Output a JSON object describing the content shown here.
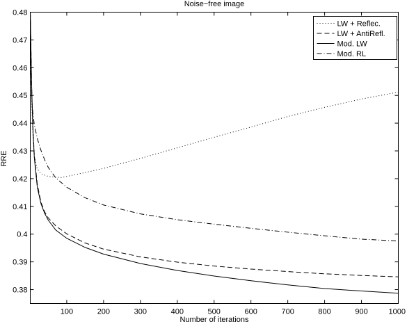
{
  "chart_data": {
    "type": "line",
    "title": "Noise−free image",
    "xlabel": "Number of iterations",
    "ylabel": "RRE",
    "xlim": [
      1,
      1000
    ],
    "ylim": [
      0.375,
      0.48
    ],
    "xticks": [
      100,
      200,
      300,
      400,
      500,
      600,
      700,
      800,
      900,
      1000
    ],
    "xtick_labels": [
      "100",
      "200",
      "300",
      "400",
      "500",
      "600",
      "700",
      "800",
      "900",
      "1000"
    ],
    "yticks": [
      0.38,
      0.39,
      0.4,
      0.41,
      0.42,
      0.43,
      0.44,
      0.45,
      0.46,
      0.47,
      0.48
    ],
    "ytick_labels": [
      "0.38",
      "0.39",
      "0.4",
      "0.41",
      "0.42",
      "0.43",
      "0.44",
      "0.45",
      "0.46",
      "0.47",
      "0.48"
    ],
    "grid": false,
    "legend_position": "top-right",
    "series": [
      {
        "name": "LW + Reflec.",
        "style": "dotted",
        "x": [
          1,
          3,
          5,
          8,
          12,
          20,
          30,
          50,
          70,
          85,
          100,
          150,
          200,
          300,
          400,
          500,
          600,
          700,
          800,
          900,
          1000
        ],
        "y": [
          0.48,
          0.462,
          0.447,
          0.436,
          0.428,
          0.4235,
          0.4218,
          0.4208,
          0.4205,
          0.4204,
          0.4208,
          0.4222,
          0.4237,
          0.4273,
          0.4311,
          0.4349,
          0.4386,
          0.4424,
          0.4457,
          0.4487,
          0.4512
        ]
      },
      {
        "name": "LW + AntiRefl.",
        "style": "dashed",
        "x": [
          1,
          3,
          5,
          8,
          12,
          20,
          30,
          40,
          50,
          70,
          100,
          150,
          200,
          300,
          400,
          500,
          600,
          700,
          800,
          900,
          1000
        ],
        "y": [
          0.48,
          0.466,
          0.452,
          0.439,
          0.4285,
          0.418,
          0.4115,
          0.408,
          0.4058,
          0.403,
          0.4001,
          0.3968,
          0.3946,
          0.3918,
          0.3899,
          0.3885,
          0.3874,
          0.3865,
          0.3857,
          0.3851,
          0.3846
        ]
      },
      {
        "name": "Mod. LW",
        "style": "solid",
        "x": [
          1,
          3,
          5,
          8,
          12,
          20,
          30,
          40,
          50,
          70,
          100,
          150,
          200,
          300,
          400,
          500,
          600,
          700,
          800,
          900,
          1000
        ],
        "y": [
          0.48,
          0.466,
          0.452,
          0.4385,
          0.4275,
          0.417,
          0.411,
          0.4075,
          0.405,
          0.4015,
          0.3985,
          0.3952,
          0.3928,
          0.3894,
          0.3869,
          0.3849,
          0.3832,
          0.3817,
          0.3804,
          0.3795,
          0.3787
        ]
      },
      {
        "name": "Mod. RL",
        "style": "dashdot",
        "x": [
          1,
          3,
          5,
          8,
          12,
          20,
          30,
          40,
          50,
          70,
          100,
          150,
          200,
          300,
          400,
          500,
          600,
          700,
          800,
          900,
          1000
        ],
        "y": [
          0.48,
          0.46,
          0.449,
          0.4435,
          0.4395,
          0.4345,
          0.4302,
          0.4268,
          0.424,
          0.4203,
          0.4169,
          0.4131,
          0.4105,
          0.4073,
          0.4052,
          0.4036,
          0.4021,
          0.4007,
          0.3994,
          0.3982,
          0.3975
        ]
      }
    ]
  }
}
